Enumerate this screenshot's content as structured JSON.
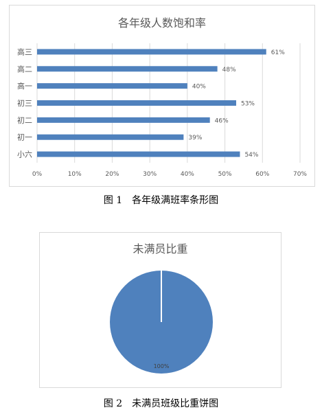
{
  "chart_data": [
    {
      "type": "bar",
      "orientation": "horizontal",
      "title": "各年级人数饱和率",
      "categories": [
        "高三",
        "高二",
        "高一",
        "初三",
        "初二",
        "初一",
        "小六"
      ],
      "values": [
        61,
        48,
        40,
        53,
        46,
        39,
        54
      ],
      "data_labels": [
        "61%",
        "48%",
        "40%",
        "53%",
        "46%",
        "39%",
        "54%"
      ],
      "x_ticks": [
        "0%",
        "10%",
        "20%",
        "30%",
        "40%",
        "50%",
        "60%",
        "70%"
      ],
      "xlim": [
        0,
        70
      ],
      "grid": "vertical",
      "color": "#4f81bd"
    },
    {
      "type": "pie",
      "title": "未满员比重",
      "values": [
        100
      ],
      "data_labels": [
        "100%"
      ],
      "color": "#4f81bd"
    }
  ],
  "captions": {
    "figure1": "图 1　各年级满班率条形图",
    "figure2": "图 2　未满员班级比重饼图"
  }
}
